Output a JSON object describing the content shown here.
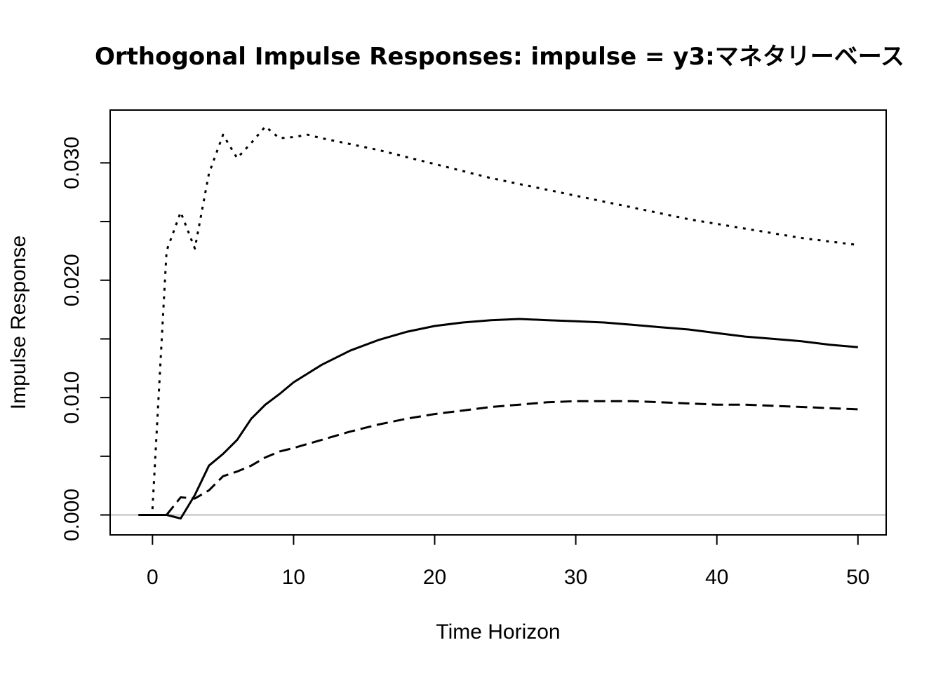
{
  "chart_data": {
    "type": "line",
    "title": "Orthogonal Impulse Responses: impulse = y3:マネタリーベース",
    "xlabel": "Time Horizon",
    "ylabel": "Impulse Response",
    "xlim": [
      -3,
      52
    ],
    "ylim": [
      -0.0017,
      0.0345
    ],
    "xticks": [
      0,
      10,
      20,
      30,
      40,
      50
    ],
    "xtick_labels": [
      "0",
      "10",
      "20",
      "30",
      "40",
      "50"
    ],
    "yticks": [
      0.0,
      0.005,
      0.01,
      0.015,
      0.02,
      0.025,
      0.03
    ],
    "ytick_labels": [
      "0.000",
      "",
      "0.010",
      "",
      "0.020",
      "",
      "0.030"
    ],
    "grid": false,
    "zero_line": {
      "y": 0,
      "color": "#bebebe"
    },
    "series": [
      {
        "line_style": "solid",
        "x": [
          -1,
          0,
          1,
          2,
          3,
          4,
          5,
          6,
          7,
          8,
          9,
          10,
          12,
          14,
          16,
          18,
          20,
          22,
          24,
          26,
          28,
          30,
          32,
          34,
          36,
          38,
          40,
          42,
          44,
          46,
          48,
          50
        ],
        "values": [
          0,
          0,
          0,
          -0.0003,
          0.0017,
          0.0042,
          0.0052,
          0.0064,
          0.0082,
          0.0094,
          0.0103,
          0.0113,
          0.0128,
          0.014,
          0.0149,
          0.0156,
          0.0161,
          0.0164,
          0.0166,
          0.0167,
          0.0166,
          0.0165,
          0.0164,
          0.0162,
          0.016,
          0.0158,
          0.0155,
          0.0152,
          0.015,
          0.0148,
          0.0145,
          0.0143
        ]
      },
      {
        "line_style": "dashed",
        "x": [
          1,
          2,
          3,
          4,
          5,
          6,
          7,
          8,
          9,
          10,
          12,
          14,
          16,
          18,
          20,
          22,
          24,
          26,
          28,
          30,
          32,
          34,
          36,
          38,
          40,
          42,
          44,
          46,
          48,
          50
        ],
        "values": [
          0,
          0.0015,
          0.0014,
          0.0021,
          0.0033,
          0.0037,
          0.0042,
          0.0049,
          0.0054,
          0.0057,
          0.0064,
          0.0071,
          0.0077,
          0.0082,
          0.0086,
          0.0089,
          0.0092,
          0.0094,
          0.0096,
          0.0097,
          0.0097,
          0.0097,
          0.0096,
          0.0095,
          0.0094,
          0.0094,
          0.0093,
          0.0092,
          0.0091,
          0.009
        ]
      },
      {
        "line_style": "dotted",
        "x": [
          0,
          1,
          2,
          3,
          4,
          5,
          6,
          7,
          8,
          9,
          10,
          11,
          12,
          14,
          16,
          18,
          20,
          22,
          24,
          26,
          28,
          30,
          32,
          34,
          36,
          38,
          40,
          42,
          44,
          46,
          48,
          50
        ],
        "values": [
          0.0005,
          0.0225,
          0.0258,
          0.0227,
          0.0291,
          0.0324,
          0.0304,
          0.0317,
          0.0331,
          0.0321,
          0.0322,
          0.0324,
          0.0321,
          0.0316,
          0.0311,
          0.0305,
          0.0299,
          0.0293,
          0.0287,
          0.0282,
          0.0277,
          0.0272,
          0.0267,
          0.0262,
          0.0257,
          0.0252,
          0.0248,
          0.0244,
          0.024,
          0.0236,
          0.0233,
          0.023
        ]
      }
    ]
  }
}
